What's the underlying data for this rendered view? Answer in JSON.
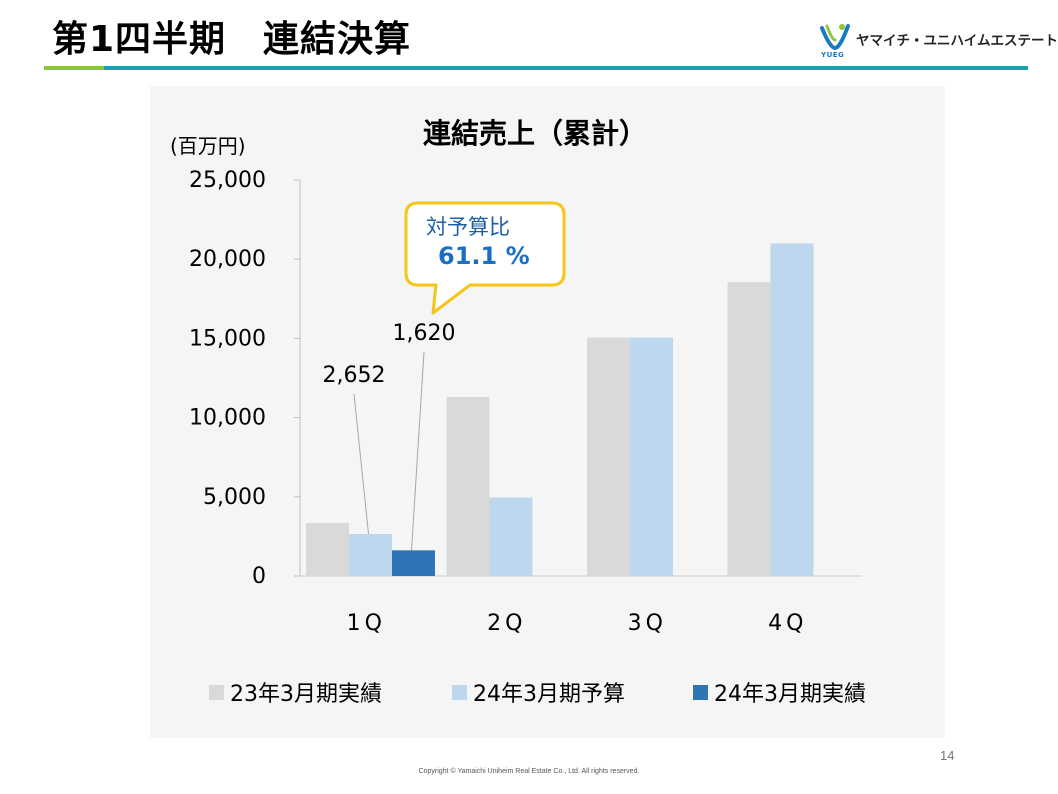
{
  "header": {
    "title": "第1四半期　連結決算",
    "logo_text": "ヤマイチ・ユニハイムエステート",
    "logo_sub": "YUEG",
    "accent_green": "#8dc63f",
    "accent_teal": "#1b9fb0"
  },
  "chart_data": {
    "type": "bar",
    "title": "連結売上（累計）",
    "ylabel": "(百万円)",
    "xlabel": "",
    "ylim": [
      0,
      25000
    ],
    "yticks": [
      0,
      5000,
      10000,
      15000,
      20000,
      25000
    ],
    "ytick_labels": [
      "0",
      "5,000",
      "10,000",
      "15,000",
      "20,000",
      "25,000"
    ],
    "categories": [
      "1Q",
      "2Q",
      "3Q",
      "4Q"
    ],
    "series": [
      {
        "name": "23年3月期実績",
        "color": "#d9d9d9",
        "values": [
          3350,
          11300,
          15050,
          18550
        ]
      },
      {
        "name": "24年3月期予算",
        "color": "#bdd7ee",
        "values": [
          2652,
          4950,
          15050,
          21000
        ]
      },
      {
        "name": "24年3月期実績",
        "color": "#2e75b6",
        "values": [
          1620,
          null,
          null,
          null
        ]
      }
    ],
    "data_labels": [
      {
        "series": 1,
        "category": 0,
        "text": "2,652"
      },
      {
        "series": 2,
        "category": 0,
        "text": "1,620"
      }
    ],
    "callout": {
      "label": "対予算比",
      "value": "61.1 %",
      "border_color": "#f5c518",
      "text_color": "#1f5fa8",
      "value_color": "#1a6fc2"
    },
    "legend_position": "bottom"
  },
  "footer": {
    "page_number": "14",
    "copyright": "Copyright © Yamaichi Uniheim Real Estate Co., Ltd. All rights reserved."
  }
}
